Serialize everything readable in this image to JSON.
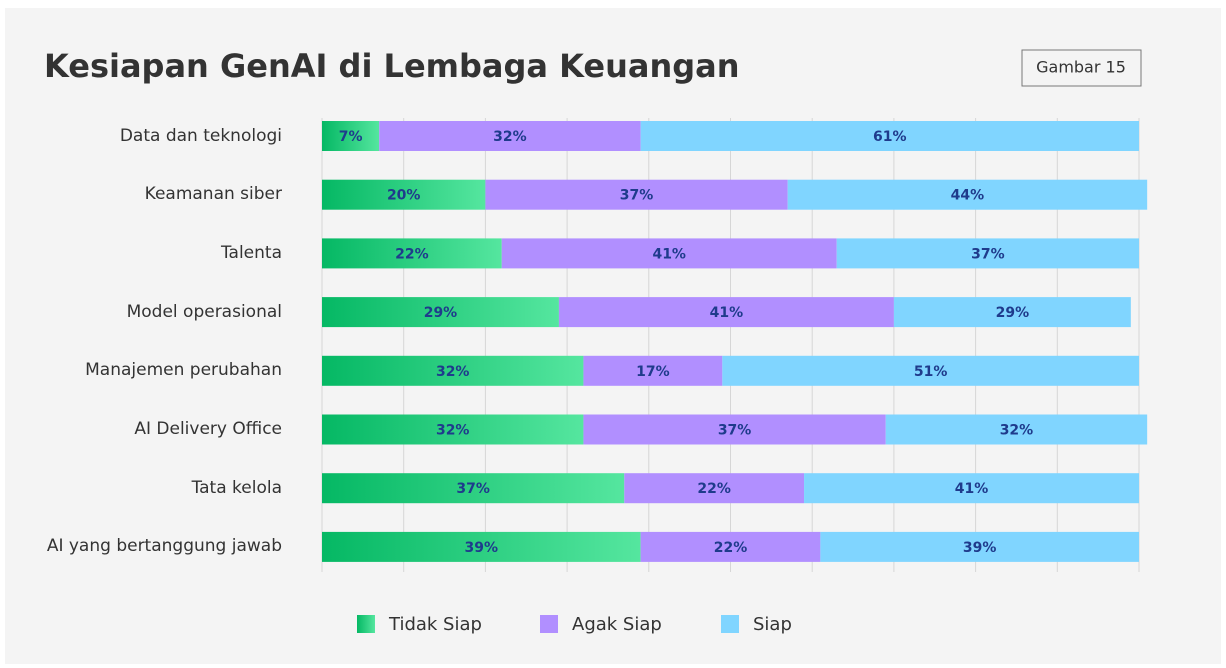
{
  "chart_data": {
    "type": "stacked_barh",
    "title": "Kesiapan GenAI di Lembaga Keuangan",
    "annotation": "Gambar 15",
    "categories": [
      "Data dan teknologi",
      "Keamanan siber",
      "Talenta",
      "Model operasional",
      "Manajemen perubahan",
      "AI Delivery Office",
      "Tata kelola",
      "AI yang bertanggung jawab"
    ],
    "series": [
      {
        "name": "Tidak Siap",
        "color": "#12c273",
        "values": [
          7,
          20,
          22,
          29,
          32,
          32,
          37,
          39
        ],
        "value_labels": [
          "7%",
          "20%",
          "22%",
          "29%",
          "32%",
          "32%",
          "37%",
          "39%"
        ]
      },
      {
        "name": "Agak Siap",
        "color": "#b18fff",
        "values": [
          32,
          37,
          41,
          41,
          17,
          37,
          22,
          22
        ],
        "value_labels": [
          "32%",
          "37%",
          "41%",
          "41%",
          "17%",
          "37%",
          "22%",
          "22%"
        ]
      },
      {
        "name": "Siap",
        "color": "#80d5ff",
        "values": [
          61,
          44,
          37,
          29,
          51,
          32,
          41,
          39
        ],
        "value_labels": [
          "61%",
          "44%",
          "37%",
          "29%",
          "51%",
          "32%",
          "41%",
          "39%"
        ]
      }
    ],
    "xlim": [
      0,
      100
    ],
    "xticks": [
      0,
      10,
      20,
      30,
      40,
      50,
      60,
      70,
      80,
      90,
      100
    ],
    "grid": true
  }
}
